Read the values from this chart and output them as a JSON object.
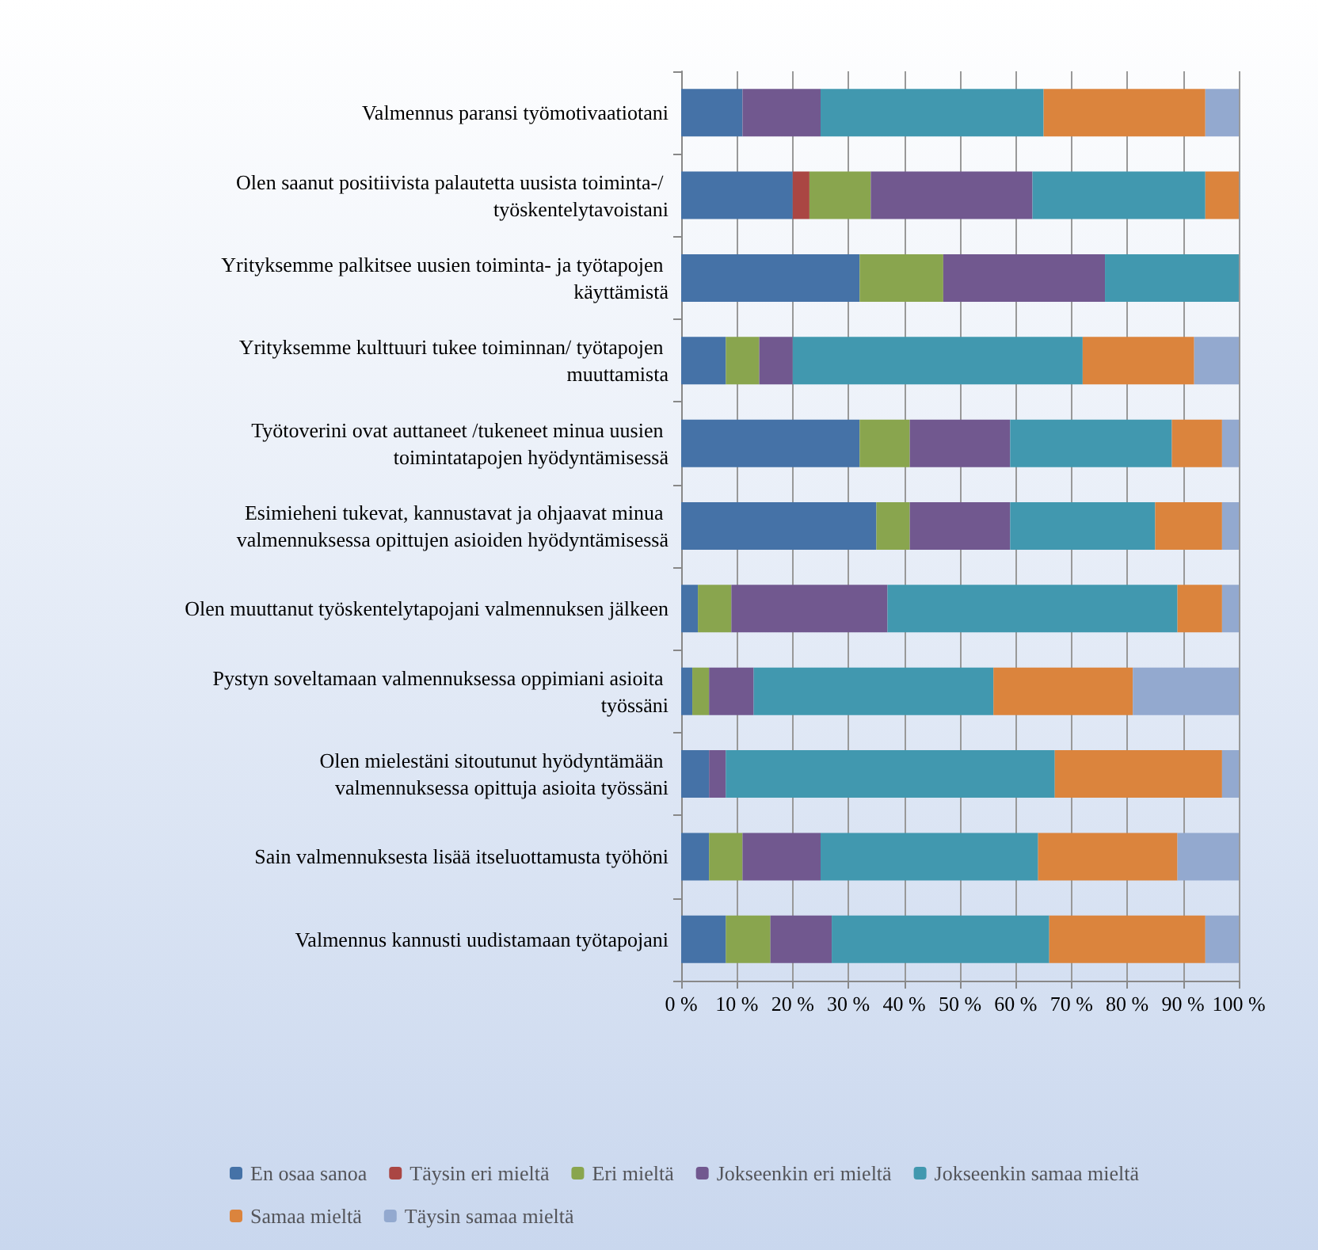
{
  "chart_data": {
    "type": "bar",
    "orientation": "horizontal",
    "stacked": true,
    "categories": [
      "Valmennus paransi työmotivaatiotani",
      "Olen saanut positiivista palautetta uusista toiminta-/ työskentelytavoistani",
      "Yrityksemme palkitsee uusien toiminta- ja työtapojen käyttämistä",
      "Yrityksemme kulttuuri tukee toiminnan/ työtapojen muuttamista",
      "Työtoverini ovat auttaneet /tukeneet minua uusien toimintatapojen hyödyntämisessä",
      "Esimieheni tukevat, kannustavat ja ohjaavat minua valmennuksessa opittujen asioiden hyödyntämisessä",
      "Olen muuttanut työskentelytapojani valmennuksen jälkeen",
      "Pystyn soveltamaan valmennuksessa oppimiani asioita työssäni",
      "Olen mielestäni sitoutunut hyödyntämään valmennuksessa opittuja asioita työssäni",
      "Sain valmennuksesta lisää itseluottamusta työhöni",
      "Valmennus kannusti uudistamaan työtapojani"
    ],
    "series": [
      {
        "name": "En osaa sanoa",
        "color": "#4572a7",
        "values": [
          11,
          20,
          32,
          8,
          32,
          35,
          3,
          2,
          5,
          5,
          8
        ]
      },
      {
        "name": "Täysin eri mieltä",
        "color": "#aa4643",
        "values": [
          0,
          3,
          0,
          0,
          0,
          0,
          0,
          0,
          0,
          0,
          0
        ]
      },
      {
        "name": "Eri mieltä",
        "color": "#89a54e",
        "values": [
          0,
          11,
          15,
          6,
          9,
          6,
          6,
          3,
          0,
          6,
          8
        ]
      },
      {
        "name": "Jokseenkin eri mieltä",
        "color": "#71588f",
        "values": [
          14,
          29,
          29,
          6,
          18,
          18,
          28,
          8,
          3,
          14,
          11
        ]
      },
      {
        "name": "Jokseenkin samaa mieltä",
        "color": "#4198af",
        "values": [
          40,
          31,
          24,
          52,
          29,
          26,
          52,
          43,
          59,
          39,
          39
        ]
      },
      {
        "name": "Samaa mieltä",
        "color": "#db843d",
        "values": [
          29,
          6,
          0,
          20,
          9,
          12,
          8,
          25,
          30,
          25,
          28
        ]
      },
      {
        "name": "Täysin samaa mieltä",
        "color": "#93a9cf",
        "values": [
          6,
          0,
          0,
          8,
          3,
          3,
          3,
          19,
          3,
          11,
          6
        ]
      }
    ],
    "xlim": [
      0,
      100
    ],
    "xticks": [
      {
        "value": 0,
        "label": "0 %"
      },
      {
        "value": 10,
        "label": "10 %"
      },
      {
        "value": 20,
        "label": "20 %"
      },
      {
        "value": 30,
        "label": "30 %"
      },
      {
        "value": 40,
        "label": "40 %"
      },
      {
        "value": 50,
        "label": "50 %"
      },
      {
        "value": 60,
        "label": "60 %"
      },
      {
        "value": 70,
        "label": "70 %"
      },
      {
        "value": 80,
        "label": "80 %"
      },
      {
        "value": 90,
        "label": "90 %"
      },
      {
        "value": 100,
        "label": "100 %"
      }
    ],
    "grid": "x",
    "legend": "bottom"
  }
}
